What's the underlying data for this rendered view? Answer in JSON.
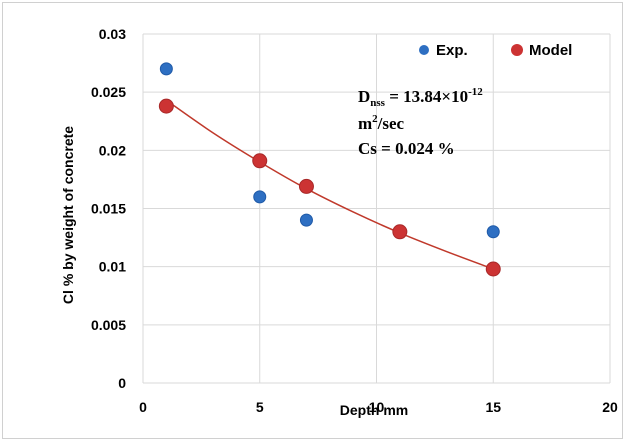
{
  "chart_data": {
    "type": "scatter",
    "title": "",
    "xlabel": "Depth mm",
    "ylabel": "Cl % by weight of concrete",
    "xlim": [
      0,
      20
    ],
    "ylim": [
      0,
      0.03
    ],
    "x_ticks": [
      "0",
      "5",
      "10",
      "15",
      "20"
    ],
    "y_ticks": [
      "0",
      "0.005",
      "0.01",
      "0.015",
      "0.02",
      "0.025",
      "0.03"
    ],
    "grid": true,
    "legend_position": "top-right",
    "series": [
      {
        "name": "Exp.",
        "color": "#2E6FC2",
        "marker": "circle",
        "x": [
          1,
          5,
          7,
          11,
          15
        ],
        "y": [
          0.027,
          0.016,
          0.014,
          0.013,
          0.013
        ]
      },
      {
        "name": "Model",
        "color": "#CC3333",
        "marker": "circle",
        "x": [
          1,
          5,
          7,
          11,
          15
        ],
        "y": [
          0.0238,
          0.0191,
          0.0169,
          0.013,
          0.0098
        ]
      }
    ],
    "fit_line": {
      "color": "#C0392B",
      "x": [
        1,
        3,
        5,
        7,
        9,
        11,
        13,
        15
      ],
      "y": [
        0.0243,
        0.0215,
        0.019,
        0.0167,
        0.0147,
        0.0129,
        0.0113,
        0.0098
      ]
    },
    "annotation": {
      "line1_main": "D",
      "line1_sub": "nss",
      "line1_rest": " = 13.84×10",
      "line1_sup": "-12",
      "line2_main": "m",
      "line2_sup": "2",
      "line2_rest": "/sec",
      "line3": "Cs =  0.024 %"
    }
  }
}
